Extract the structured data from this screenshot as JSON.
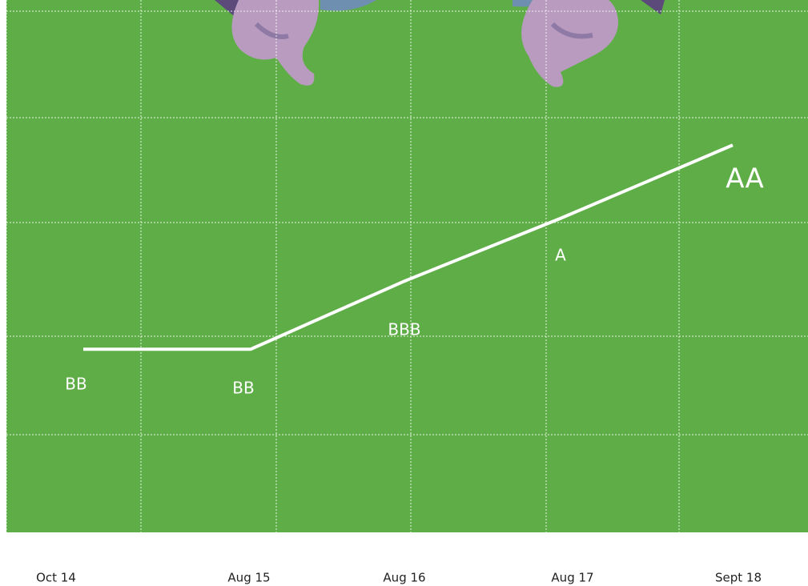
{
  "chart_data": {
    "type": "line",
    "categories": [
      "Oct 14",
      "Aug 15",
      "Aug 16",
      "Aug 17",
      "Sept 18"
    ],
    "series": [
      {
        "color": "#ffffff",
        "values": [
          1.75,
          1.75,
          2.4,
          3.0,
          3.7
        ]
      }
    ],
    "ylim": [
      0,
      5
    ],
    "grid": true,
    "annotations": [
      {
        "text": "BB"
      },
      {
        "text": "BB"
      },
      {
        "text": "BBB"
      },
      {
        "text": "A"
      },
      {
        "text": "AA"
      }
    ]
  }
}
